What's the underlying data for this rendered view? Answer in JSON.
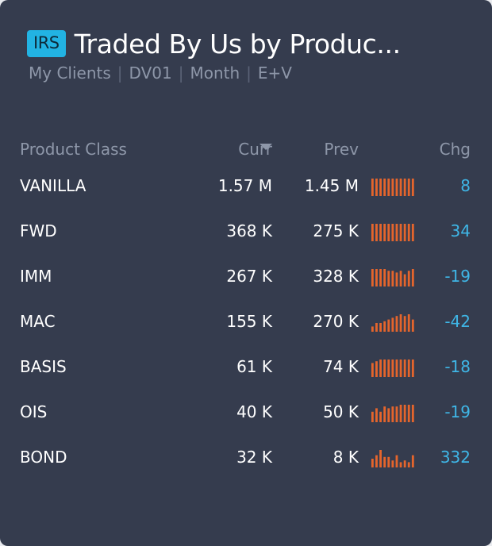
{
  "header": {
    "badge": "IRS",
    "title": "Traded By Us by Produc...",
    "filters": [
      "My Clients",
      "DV01",
      "Month",
      "E+V"
    ]
  },
  "columns": {
    "name": "Product Class",
    "curr": "Curr",
    "prev": "Prev",
    "chg": "Chg"
  },
  "colors": {
    "background": "#353c4e",
    "badge": "#22b3e3",
    "spark": "#e5652c",
    "chg": "#3fb6e6"
  },
  "rows": [
    {
      "name": "VANILLA",
      "curr": "1.57 M",
      "prev": "1.45 M",
      "chg": "8",
      "spark": [
        1,
        1,
        1,
        1,
        1,
        1,
        1,
        1,
        1,
        1,
        1
      ]
    },
    {
      "name": "FWD",
      "curr": "368 K",
      "prev": "275 K",
      "chg": "34",
      "spark": [
        1,
        1,
        1,
        1,
        1,
        1,
        1,
        1,
        1,
        1,
        1
      ]
    },
    {
      "name": "IMM",
      "curr": "267 K",
      "prev": "328 K",
      "chg": "-19",
      "spark": [
        1,
        1,
        1,
        1,
        0.9,
        0.9,
        0.8,
        0.9,
        0.7,
        0.9,
        1
      ]
    },
    {
      "name": "MAC",
      "curr": "155 K",
      "prev": "270 K",
      "chg": "-42",
      "spark": [
        0.3,
        0.5,
        0.5,
        0.6,
        0.7,
        0.8,
        0.9,
        1,
        0.9,
        1,
        0.7
      ]
    },
    {
      "name": "BASIS",
      "curr": "61 K",
      "prev": "74 K",
      "chg": "-18",
      "spark": [
        0.8,
        0.9,
        1,
        1,
        1,
        1,
        1,
        1,
        1,
        1,
        1
      ]
    },
    {
      "name": "OIS",
      "curr": "40 K",
      "prev": "50 K",
      "chg": "-19",
      "spark": [
        0.6,
        0.8,
        0.6,
        0.9,
        0.8,
        0.9,
        0.9,
        1,
        1,
        1,
        1
      ]
    },
    {
      "name": "BOND",
      "curr": "32 K",
      "prev": "8 K",
      "chg": "332",
      "spark": [
        0.5,
        0.7,
        1,
        0.6,
        0.6,
        0.4,
        0.7,
        0.3,
        0.4,
        0.3,
        0.7
      ]
    }
  ]
}
